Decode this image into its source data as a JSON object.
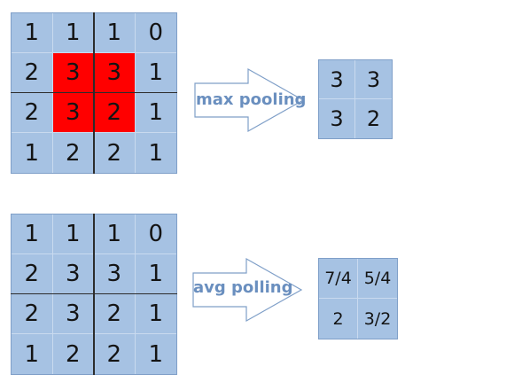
{
  "max_section": {
    "input_matrix": [
      [
        1,
        1,
        1,
        0
      ],
      [
        2,
        3,
        3,
        1
      ],
      [
        2,
        3,
        2,
        1
      ],
      [
        1,
        2,
        2,
        1
      ]
    ],
    "highlight": [
      [
        1,
        1
      ],
      [
        1,
        2
      ],
      [
        2,
        1
      ],
      [
        2,
        2
      ]
    ],
    "label": "max pooling",
    "output_matrix": [
      [
        3,
        3
      ],
      [
        3,
        2
      ]
    ]
  },
  "avg_section": {
    "input_matrix": [
      [
        1,
        1,
        1,
        0
      ],
      [
        2,
        3,
        3,
        1
      ],
      [
        2,
        3,
        2,
        1
      ],
      [
        1,
        2,
        2,
        1
      ]
    ],
    "label": "avg polling",
    "output_matrix": [
      [
        "7/4",
        "5/4"
      ],
      [
        "2",
        "3/2"
      ]
    ]
  },
  "colors": {
    "cell_fill": "#a6c2e3",
    "highlight": "#ff0000",
    "arrow_stroke": "#7f9fc8",
    "label_text": "#6a8fbf"
  }
}
